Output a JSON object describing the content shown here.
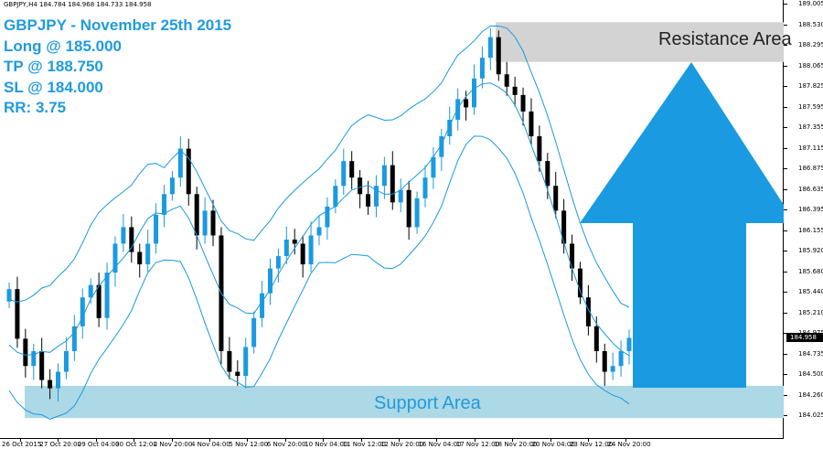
{
  "header": {
    "symbol_info": "GBPJPY,H4  184.784 184.968 184.733 184.958"
  },
  "trade_info": {
    "line1": "GBPJPY - November 25th 2015",
    "line2": "Long @ 185.000",
    "line3": "TP @ 188.750",
    "line4": "SL @ 184.000",
    "line5": "RR: 3.75"
  },
  "zones": {
    "resistance_label": "Resistance Area",
    "support_label": "Support Area",
    "resistance_color": "#d3d3d3",
    "support_color": "#add8e6"
  },
  "arrow": {
    "direction": "up",
    "color": "#1a9ae0"
  },
  "colors": {
    "bull_candle": "#1a9ae0",
    "bear_candle": "#000000",
    "bands": "#1a9ae0",
    "text_accent": "#1f9bde"
  },
  "price_axis": {
    "labels": [
      "189.005",
      "188.530",
      "188.295",
      "188.065",
      "187.825",
      "187.595",
      "187.355",
      "187.115",
      "186.875",
      "186.635",
      "186.395",
      "186.155",
      "185.920",
      "185.680",
      "185.440",
      "185.210",
      "184.975",
      "184.735",
      "184.500",
      "184.260",
      "184.025"
    ],
    "current_price": "184.958"
  },
  "time_axis": {
    "labels": [
      "26 Oct 2015",
      "27 Oct 20:00",
      "29 Oct 04:00",
      "30 Oct 12:00",
      "2 Nov 20:00",
      "4 Nov 04:00",
      "5 Nov 12:00",
      "6 Nov 20:00",
      "10 Nov 04:00",
      "11 Nov 12:00",
      "12 Nov 20:00",
      "16 Nov 04:00",
      "17 Nov 12:00",
      "18 Nov 20:00",
      "20 Nov 04:00",
      "23 Nov 12:00",
      "24 Nov 20:00"
    ]
  },
  "chart_data": {
    "type": "candlestick",
    "symbol": "GBPJPY",
    "timeframe": "H4",
    "ylim": [
      184.0,
      189.1
    ],
    "indicators": [
      "bollinger-bands"
    ],
    "resistance_zone": [
      188.3,
      188.78
    ],
    "support_zone": [
      183.99,
      184.38
    ],
    "close_values": [
      185.55,
      184.95,
      184.62,
      184.8,
      184.45,
      184.35,
      184.55,
      184.8,
      185.1,
      185.45,
      185.6,
      185.2,
      185.75,
      186.1,
      186.3,
      186.0,
      185.85,
      186.1,
      186.45,
      186.7,
      186.9,
      187.25,
      186.7,
      186.2,
      186.5,
      186.2,
      184.8,
      184.55,
      184.5,
      184.85,
      185.2,
      185.5,
      185.8,
      185.95,
      186.15,
      186.1,
      185.85,
      186.2,
      186.3,
      186.55,
      186.8,
      187.1,
      186.9,
      186.7,
      186.55,
      186.8,
      187.05,
      186.6,
      186.75,
      186.3,
      186.65,
      186.9,
      187.15,
      187.4,
      187.6,
      187.85,
      187.75,
      188.1,
      188.35,
      188.6,
      188.15,
      188.0,
      187.9,
      187.7,
      187.4,
      187.1,
      186.8,
      186.5,
      186.1,
      185.8,
      185.45,
      185.1,
      184.8,
      184.55,
      184.62,
      184.8,
      184.96
    ]
  }
}
